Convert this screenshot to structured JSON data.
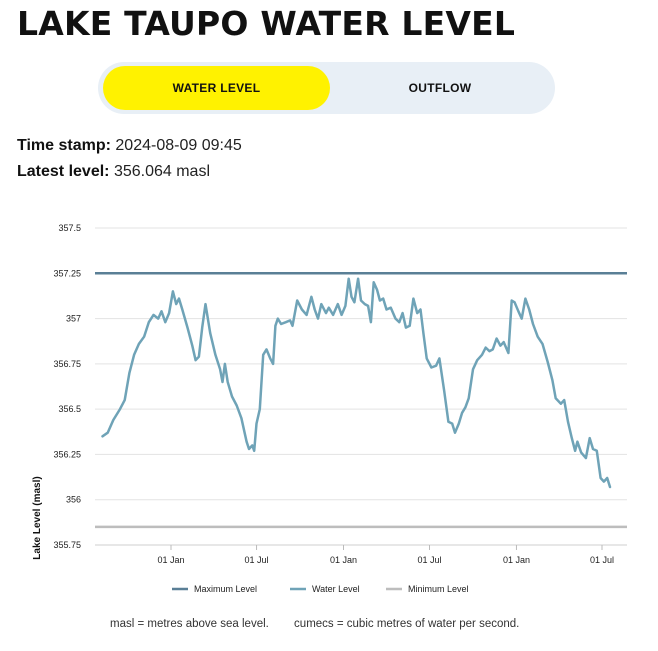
{
  "page": {
    "title": "LAKE TAUPO WATER LEVEL",
    "tabs": [
      {
        "label": "WATER LEVEL",
        "active": true
      },
      {
        "label": "OUTFLOW",
        "active": false
      }
    ],
    "timestamp_label": "Time stamp:",
    "timestamp_value": "2024-08-09 09:45",
    "latest_label": "Latest level:",
    "latest_value": "356.064 masl",
    "footnotes": [
      "masl = metres above sea level.",
      "cumecs = cubic metres of water per second."
    ],
    "colors": {
      "accent": "#fff200",
      "tab_track": "#e8eff6",
      "max_line": "#5a7f96",
      "water_line": "#6fa3b7",
      "min_line": "#bdbdbd"
    }
  },
  "chart_data": {
    "type": "line",
    "xlabel": "",
    "ylabel": "Lake Level (masl)",
    "ylim": [
      355.75,
      357.5
    ],
    "y_ticks": [
      "357.5",
      "357.25",
      "357",
      "356.75",
      "356.5",
      "356.25",
      "356",
      "355.75"
    ],
    "x_ticks": [
      "01 Jan",
      "01 Jul",
      "01 Jan",
      "01 Jul",
      "01 Jan",
      "01 Jul"
    ],
    "x_tick_dates": [
      "2019-01-01",
      "2019-07-01",
      "2020-01-01",
      "2020-07-01",
      "2021-01-01",
      "2021-07-01"
    ],
    "grid": true,
    "legend_position": "bottom",
    "series": [
      {
        "name": "Maximum Level",
        "color": "#5a7f96",
        "constant": 357.25
      },
      {
        "name": "Water Level",
        "color": "#6fa3b7",
        "points": [
          [
            "2018-08-09",
            356.35
          ],
          [
            "2018-08-20",
            356.37
          ],
          [
            "2018-09-01",
            356.44
          ],
          [
            "2018-09-15",
            356.5
          ],
          [
            "2018-09-25",
            356.55
          ],
          [
            "2018-10-05",
            356.7
          ],
          [
            "2018-10-15",
            356.8
          ],
          [
            "2018-10-25",
            356.86
          ],
          [
            "2018-11-05",
            356.9
          ],
          [
            "2018-11-15",
            356.98
          ],
          [
            "2018-11-25",
            357.02
          ],
          [
            "2018-12-05",
            357.0
          ],
          [
            "2018-12-12",
            357.04
          ],
          [
            "2018-12-20",
            356.98
          ],
          [
            "2018-12-28",
            357.03
          ],
          [
            "2019-01-05",
            357.15
          ],
          [
            "2019-01-12",
            357.08
          ],
          [
            "2019-01-18",
            357.11
          ],
          [
            "2019-01-25",
            357.05
          ],
          [
            "2019-02-05",
            356.95
          ],
          [
            "2019-02-15",
            356.85
          ],
          [
            "2019-02-22",
            356.77
          ],
          [
            "2019-03-01",
            356.79
          ],
          [
            "2019-03-08",
            356.95
          ],
          [
            "2019-03-15",
            357.08
          ],
          [
            "2019-03-25",
            356.92
          ],
          [
            "2019-04-05",
            356.8
          ],
          [
            "2019-04-15",
            356.72
          ],
          [
            "2019-04-20",
            356.65
          ],
          [
            "2019-04-25",
            356.75
          ],
          [
            "2019-05-01",
            356.65
          ],
          [
            "2019-05-10",
            356.57
          ],
          [
            "2019-05-20",
            356.52
          ],
          [
            "2019-05-30",
            356.45
          ],
          [
            "2019-06-10",
            356.32
          ],
          [
            "2019-06-15",
            356.28
          ],
          [
            "2019-06-22",
            356.3
          ],
          [
            "2019-06-26",
            356.27
          ],
          [
            "2019-07-01",
            356.42
          ],
          [
            "2019-07-08",
            356.5
          ],
          [
            "2019-07-15",
            356.8
          ],
          [
            "2019-07-22",
            356.83
          ],
          [
            "2019-07-30",
            356.78
          ],
          [
            "2019-08-05",
            356.75
          ],
          [
            "2019-08-10",
            356.96
          ],
          [
            "2019-08-15",
            357.0
          ],
          [
            "2019-08-22",
            356.97
          ],
          [
            "2019-09-01",
            356.98
          ],
          [
            "2019-09-10",
            356.99
          ],
          [
            "2019-09-15",
            356.96
          ],
          [
            "2019-09-25",
            357.1
          ],
          [
            "2019-10-05",
            357.05
          ],
          [
            "2019-10-15",
            357.02
          ],
          [
            "2019-10-25",
            357.12
          ],
          [
            "2019-11-01",
            357.05
          ],
          [
            "2019-11-08",
            357.0
          ],
          [
            "2019-11-15",
            357.08
          ],
          [
            "2019-11-25",
            357.03
          ],
          [
            "2019-12-01",
            357.06
          ],
          [
            "2019-12-10",
            357.02
          ],
          [
            "2019-12-20",
            357.08
          ],
          [
            "2019-12-28",
            357.02
          ],
          [
            "2020-01-05",
            357.07
          ],
          [
            "2020-01-12",
            357.22
          ],
          [
            "2020-01-18",
            357.12
          ],
          [
            "2020-01-24",
            357.09
          ],
          [
            "2020-02-01",
            357.22
          ],
          [
            "2020-02-07",
            357.1
          ],
          [
            "2020-02-15",
            357.08
          ],
          [
            "2020-02-22",
            357.07
          ],
          [
            "2020-02-28",
            356.98
          ],
          [
            "2020-03-05",
            357.2
          ],
          [
            "2020-03-12",
            357.16
          ],
          [
            "2020-03-18",
            357.1
          ],
          [
            "2020-03-25",
            357.11
          ],
          [
            "2020-04-01",
            357.05
          ],
          [
            "2020-04-10",
            357.06
          ],
          [
            "2020-04-20",
            357.0
          ],
          [
            "2020-04-28",
            356.98
          ],
          [
            "2020-05-05",
            357.03
          ],
          [
            "2020-05-12",
            356.95
          ],
          [
            "2020-05-20",
            356.96
          ],
          [
            "2020-05-28",
            357.11
          ],
          [
            "2020-06-05",
            357.03
          ],
          [
            "2020-06-12",
            357.05
          ],
          [
            "2020-06-18",
            356.92
          ],
          [
            "2020-06-25",
            356.78
          ],
          [
            "2020-07-05",
            356.73
          ],
          [
            "2020-07-15",
            356.74
          ],
          [
            "2020-07-22",
            356.78
          ],
          [
            "2020-08-01",
            356.6
          ],
          [
            "2020-08-10",
            356.43
          ],
          [
            "2020-08-18",
            356.42
          ],
          [
            "2020-08-24",
            356.37
          ],
          [
            "2020-09-01",
            356.42
          ],
          [
            "2020-09-08",
            356.48
          ],
          [
            "2020-09-15",
            356.51
          ],
          [
            "2020-09-22",
            356.56
          ],
          [
            "2020-10-01",
            356.72
          ],
          [
            "2020-10-10",
            356.77
          ],
          [
            "2020-10-20",
            356.8
          ],
          [
            "2020-10-28",
            356.84
          ],
          [
            "2020-11-05",
            356.82
          ],
          [
            "2020-11-12",
            356.83
          ],
          [
            "2020-11-20",
            356.89
          ],
          [
            "2020-11-28",
            356.85
          ],
          [
            "2020-12-05",
            356.87
          ],
          [
            "2020-12-15",
            356.81
          ],
          [
            "2020-12-22",
            357.1
          ],
          [
            "2020-12-28",
            357.09
          ],
          [
            "2021-01-05",
            357.04
          ],
          [
            "2021-01-12",
            357.0
          ],
          [
            "2021-01-20",
            357.11
          ],
          [
            "2021-01-28",
            357.05
          ],
          [
            "2021-02-05",
            356.97
          ],
          [
            "2021-02-15",
            356.9
          ],
          [
            "2021-02-25",
            356.86
          ],
          [
            "2021-03-08",
            356.76
          ],
          [
            "2021-03-18",
            356.66
          ],
          [
            "2021-03-25",
            356.56
          ],
          [
            "2021-04-05",
            356.53
          ],
          [
            "2021-04-12",
            356.55
          ],
          [
            "2021-04-20",
            356.43
          ],
          [
            "2021-04-28",
            356.34
          ],
          [
            "2021-05-05",
            356.27
          ],
          [
            "2021-05-10",
            356.32
          ],
          [
            "2021-05-18",
            356.26
          ],
          [
            "2021-05-28",
            356.23
          ],
          [
            "2021-06-05",
            356.34
          ],
          [
            "2021-06-12",
            356.28
          ],
          [
            "2021-06-20",
            356.27
          ],
          [
            "2021-06-28",
            356.12
          ],
          [
            "2021-07-05",
            356.1
          ],
          [
            "2021-07-12",
            356.12
          ],
          [
            "2021-07-18",
            356.07
          ]
        ]
      },
      {
        "name": "Minimum Level",
        "color": "#bdbdbd",
        "constant": 355.85
      }
    ]
  }
}
